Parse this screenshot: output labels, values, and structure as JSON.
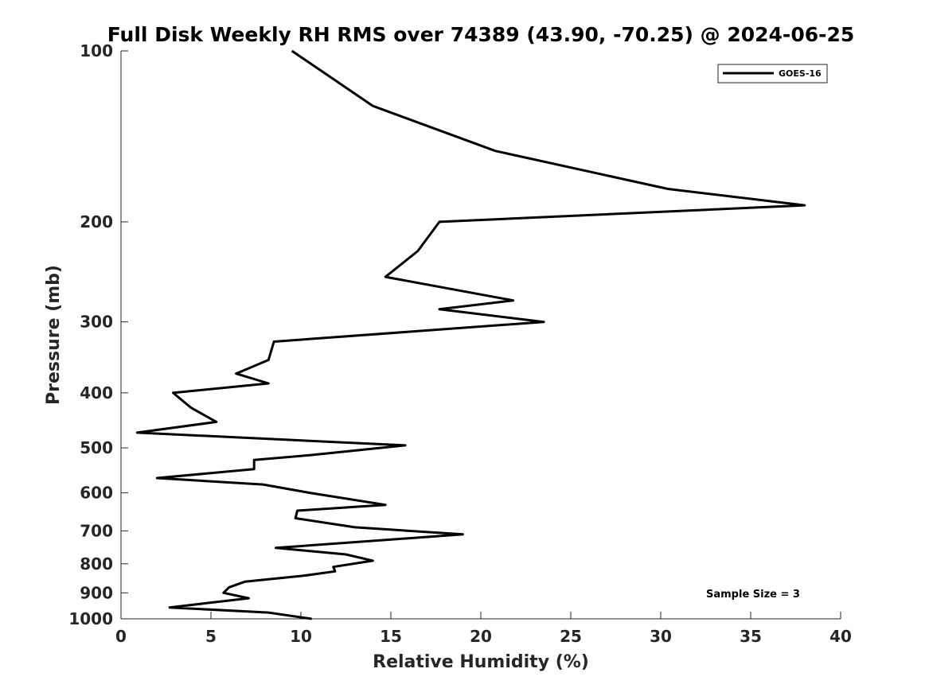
{
  "chart_data": {
    "type": "line",
    "title": "Full Disk Weekly RH RMS over 74389 (43.90, -70.25) @ 2024-06-25",
    "xlabel": "Relative Humidity (%)",
    "ylabel": "Pressure (mb)",
    "xlim": [
      0,
      40
    ],
    "ylim": [
      100,
      1000
    ],
    "y_scale": "log",
    "y_reversed": true,
    "x_ticks": [
      0,
      5,
      10,
      15,
      20,
      25,
      30,
      35,
      40
    ],
    "y_ticks": [
      100,
      200,
      300,
      400,
      500,
      600,
      700,
      800,
      900,
      1000
    ],
    "grid": false,
    "legend_position": "top-right",
    "annotation": "Sample Size = 3",
    "series": [
      {
        "name": "GOES-16",
        "color": "#000000",
        "points": [
          [
            9.5,
            100
          ],
          [
            14.0,
            125
          ],
          [
            20.8,
            150
          ],
          [
            30.4,
            175
          ],
          [
            38.0,
            187
          ],
          [
            17.7,
            200
          ],
          [
            16.5,
            225
          ],
          [
            14.7,
            250
          ],
          [
            21.8,
            275
          ],
          [
            17.7,
            285
          ],
          [
            23.5,
            300
          ],
          [
            8.5,
            325
          ],
          [
            8.2,
            350
          ],
          [
            6.4,
            370
          ],
          [
            8.2,
            385
          ],
          [
            2.9,
            400
          ],
          [
            3.9,
            425
          ],
          [
            5.3,
            450
          ],
          [
            0.9,
            470
          ],
          [
            15.8,
            495
          ],
          [
            10.5,
            515
          ],
          [
            7.4,
            525
          ],
          [
            7.4,
            545
          ],
          [
            2.0,
            565
          ],
          [
            7.9,
            580
          ],
          [
            10.5,
            600
          ],
          [
            14.7,
            630
          ],
          [
            9.8,
            645
          ],
          [
            9.7,
            665
          ],
          [
            13.0,
            690
          ],
          [
            19.0,
            710
          ],
          [
            8.6,
            750
          ],
          [
            12.5,
            770
          ],
          [
            14.0,
            790
          ],
          [
            11.8,
            810
          ],
          [
            11.9,
            825
          ],
          [
            10.1,
            840
          ],
          [
            6.9,
            860
          ],
          [
            6.0,
            880
          ],
          [
            5.7,
            900
          ],
          [
            7.1,
            920
          ],
          [
            2.7,
            955
          ],
          [
            8.2,
            975
          ],
          [
            10.6,
            1000
          ]
        ]
      }
    ]
  }
}
